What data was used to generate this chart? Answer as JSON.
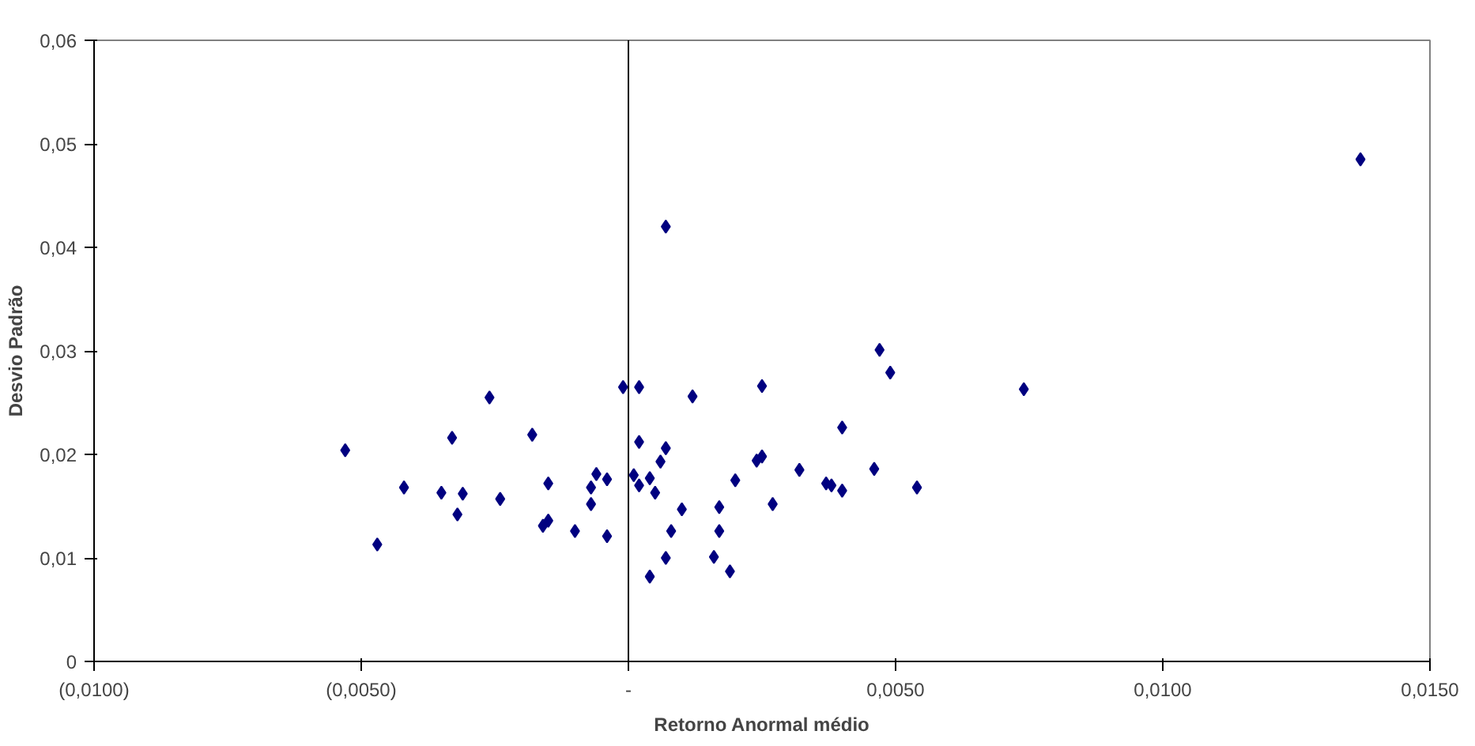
{
  "chart_data": {
    "type": "scatter",
    "xlabel": "Retorno Anormal médio",
    "ylabel": "Desvio Padrão",
    "xlim": [
      -0.01,
      0.015
    ],
    "ylim": [
      0,
      0.06
    ],
    "xticks": [
      {
        "value": -0.01,
        "label": "(0,0100)"
      },
      {
        "value": -0.005,
        "label": "(0,0050)"
      },
      {
        "value": 0,
        "label": "-"
      },
      {
        "value": 0.005,
        "label": "0,0050"
      },
      {
        "value": 0.01,
        "label": "0,0100"
      },
      {
        "value": 0.015,
        "label": "0,0150"
      }
    ],
    "yticks": [
      {
        "value": 0,
        "label": "0"
      },
      {
        "value": 0.01,
        "label": "0,01"
      },
      {
        "value": 0.02,
        "label": "0,02"
      },
      {
        "value": 0.03,
        "label": "0,03"
      },
      {
        "value": 0.04,
        "label": "0,04"
      },
      {
        "value": 0.05,
        "label": "0,05"
      },
      {
        "value": 0.06,
        "label": "0,06"
      }
    ],
    "grid": false,
    "marker": "diamond",
    "ref_lines": [
      {
        "axis": "x",
        "value": 0,
        "color": "#000000"
      }
    ],
    "series": [
      {
        "color": "#000080",
        "x": [
          -0.0053,
          -0.0047,
          -0.0042,
          -0.0035,
          -0.0033,
          -0.0032,
          -0.0031,
          -0.0026,
          -0.0024,
          -0.0018,
          -0.0016,
          -0.0015,
          -0.0015,
          -0.001,
          -0.0007,
          -0.0007,
          -0.0006,
          -0.0004,
          -0.0004,
          -0.0001,
          0.0002,
          0.0002,
          0.0001,
          0.0002,
          0.0004,
          0.0005,
          0.0006,
          0.0007,
          0.0008,
          0.0007,
          0.0004,
          0.001,
          0.0012,
          0.0016,
          0.0017,
          0.0017,
          0.0019,
          0.002,
          0.0024,
          0.0025,
          0.0025,
          0.0027,
          0.0032,
          0.0037,
          0.0038,
          0.004,
          0.004,
          0.0046,
          0.0047,
          0.0049,
          0.0054,
          0.0074,
          0.0137,
          0.0007
        ],
        "values": [
          0.0204,
          0.0113,
          0.0168,
          0.0163,
          0.0216,
          0.0142,
          0.0162,
          0.0255,
          0.0157,
          0.0219,
          0.0131,
          0.0136,
          0.0172,
          0.0126,
          0.0152,
          0.0168,
          0.0181,
          0.0121,
          0.0176,
          0.0265,
          0.0265,
          0.0212,
          0.018,
          0.017,
          0.0177,
          0.0163,
          0.0193,
          0.0206,
          0.0126,
          0.01,
          0.0082,
          0.0147,
          0.0256,
          0.0101,
          0.0149,
          0.0126,
          0.0087,
          0.0175,
          0.0194,
          0.0198,
          0.0266,
          0.0152,
          0.0185,
          0.0172,
          0.017,
          0.0165,
          0.0226,
          0.0186,
          0.0301,
          0.0279,
          0.0168,
          0.0263,
          0.0485,
          0.042
        ]
      }
    ]
  }
}
